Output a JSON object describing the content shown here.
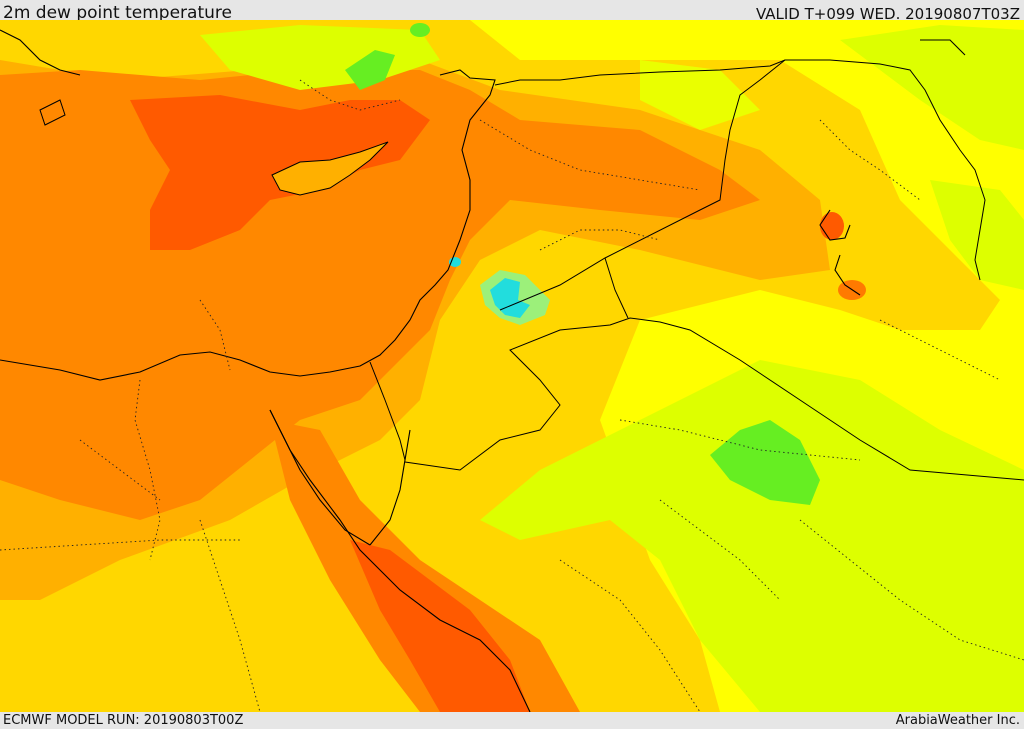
{
  "header": {
    "title": "2m dew point temperature",
    "valid": "VALID T+099 WED. 20190807T03Z"
  },
  "footer": {
    "model_run": "ECMWF MODEL RUN: 20190803T00Z",
    "credit": "ArabiaWeather Inc."
  },
  "colors": {
    "yellow": "#ffff00",
    "yellow_orange": "#ffd700",
    "light_orange": "#ffb000",
    "orange": "#ff8800",
    "dark_orange": "#ff5a00",
    "yellow_green": "#ddff00",
    "green": "#66ee22",
    "cyan": "#22dddd",
    "border": "#000000"
  }
}
